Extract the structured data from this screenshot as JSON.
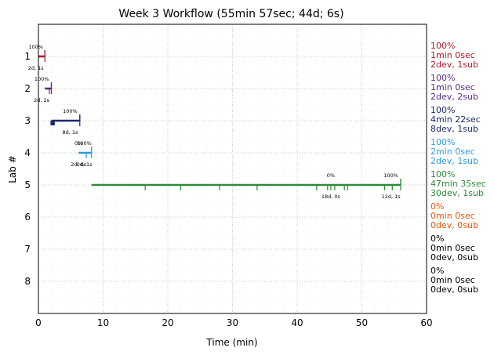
{
  "chart_data": {
    "type": "timeline",
    "title": "Week 3 Workflow (55min 57sec; 44d; 6s)",
    "xlabel": "Time (min)",
    "ylabel": "Lab #",
    "xlim": [
      0,
      60
    ],
    "ylim": [
      0,
      9
    ],
    "y_inverted": true,
    "grid": true,
    "xticks": [
      0,
      10,
      20,
      30,
      40,
      50,
      60
    ],
    "yticks": [
      1,
      2,
      3,
      4,
      5,
      6,
      7,
      8
    ],
    "labs": [
      {
        "lab": 1,
        "color": "#b2182b",
        "start": 0,
        "end": 1,
        "summary": [
          "100%",
          "1min 0sec",
          "2dev, 1sub"
        ],
        "events": [
          1
        ],
        "annotations": [
          {
            "x": -0.4,
            "top": "100%",
            "bottom": "2d, 1s"
          }
        ]
      },
      {
        "lab": 2,
        "color": "#5b2a86",
        "start": 1,
        "end": 2,
        "summary": [
          "100%",
          "1min 0sec",
          "2dev, 2sub"
        ],
        "events": [
          1.7,
          2
        ],
        "annotations": [
          {
            "x": 0.5,
            "top": "100%",
            "bottom": "2d, 2s"
          }
        ]
      },
      {
        "lab": 3,
        "color": "#1b2a6b",
        "start": 2,
        "end": 6.4,
        "summary": [
          "100%",
          "4min 22sec",
          "8dev, 1sub"
        ],
        "events": [
          6.4
        ],
        "bars": [
          2.0,
          2.1,
          2.2,
          2.3,
          2.4
        ],
        "annotations": [
          {
            "x": 4.9,
            "top": "100%",
            "bottom": "8d, 1s"
          }
        ]
      },
      {
        "lab": 4,
        "color": "#2b9be0",
        "start": 6.2,
        "end": 8.2,
        "summary": [
          "100%",
          "2min 0sec",
          "2dev, 1sub"
        ],
        "events": [
          7.4,
          8.2
        ],
        "annotations": [
          {
            "x": 6.2,
            "top": "0%",
            "bottom": "2d, 0s"
          },
          {
            "x": 7.1,
            "top": "100%",
            "bottom": "0d, 1s"
          }
        ]
      },
      {
        "lab": 5,
        "color": "#2e8b3a",
        "start": 8.2,
        "end": 56,
        "summary": [
          "100%",
          "47min 35sec",
          "30dev, 1sub"
        ],
        "events": [
          16.5,
          22,
          28,
          33.8,
          43,
          44.7,
          45.2,
          45.8,
          47.3,
          47.8,
          53.5,
          54.7,
          56
        ],
        "annotations": [
          {
            "x": 45.2,
            "top": "0%",
            "bottom": "18d, 0s"
          },
          {
            "x": 54.5,
            "top": "100%",
            "bottom": "12d, 1s"
          }
        ]
      },
      {
        "lab": 6,
        "color": "#e8590c",
        "start": null,
        "end": null,
        "summary": [
          "0%",
          "0min 0sec",
          "0dev, 0sub"
        ],
        "events": [],
        "annotations": []
      },
      {
        "lab": 7,
        "color": "#000000",
        "start": null,
        "end": null,
        "summary": [
          "0%",
          "0min 0sec",
          "0dev, 0sub"
        ],
        "events": [],
        "annotations": []
      },
      {
        "lab": 8,
        "color": "#000000",
        "start": null,
        "end": null,
        "summary": [
          "0%",
          "0min 0sec",
          "0dev, 0sub"
        ],
        "events": [],
        "annotations": []
      }
    ]
  }
}
